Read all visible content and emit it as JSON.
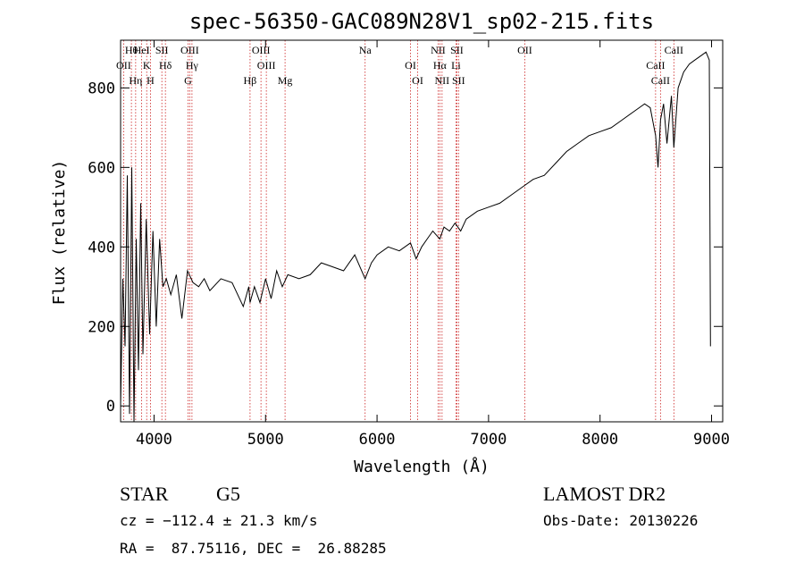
{
  "chart_data": {
    "type": "line",
    "title": "spec-56350-GAC089N28V1_sp02-215.fits",
    "xlabel": "Wavelength (Å)",
    "ylabel": "Flux (relative)",
    "xlim": [
      3700,
      9100
    ],
    "ylim": [
      -40,
      920
    ],
    "xticks": [
      4000,
      5000,
      6000,
      7000,
      8000,
      9000
    ],
    "yticks": [
      0,
      200,
      400,
      600,
      800
    ],
    "grid": false,
    "line_color": "#000000",
    "marker_color": "#cc2222",
    "series": [
      {
        "x": [
          3700,
          3720,
          3740,
          3760,
          3780,
          3800,
          3820,
          3840,
          3860,
          3880,
          3900,
          3930,
          3960,
          3990,
          4020,
          4050,
          4080,
          4110,
          4150,
          4200,
          4250,
          4300,
          4350,
          4400,
          4450,
          4500,
          4600,
          4700,
          4800,
          4850,
          4861,
          4900,
          4950,
          5000,
          5050,
          5100,
          5150,
          5200,
          5300,
          5400,
          5500,
          5600,
          5700,
          5800,
          5893,
          5950,
          6000,
          6100,
          6200,
          6300,
          6350,
          6400,
          6450,
          6500,
          6563,
          6600,
          6650,
          6700,
          6750,
          6800,
          6900,
          7000,
          7100,
          7200,
          7300,
          7400,
          7500,
          7600,
          7700,
          7800,
          7900,
          8000,
          8100,
          8200,
          8300,
          8400,
          8450,
          8498,
          8520,
          8542,
          8570,
          8600,
          8640,
          8662,
          8700,
          8750,
          8800,
          8850,
          8900,
          8950,
          8980,
          8990
        ],
        "y": [
          0,
          320,
          150,
          580,
          -20,
          600,
          -40,
          420,
          90,
          510,
          130,
          470,
          180,
          440,
          200,
          420,
          300,
          320,
          280,
          330,
          220,
          340,
          310,
          300,
          320,
          290,
          320,
          310,
          250,
          300,
          260,
          300,
          260,
          320,
          270,
          340,
          300,
          330,
          320,
          330,
          360,
          350,
          340,
          380,
          320,
          360,
          380,
          400,
          390,
          410,
          370,
          400,
          420,
          440,
          420,
          450,
          440,
          460,
          440,
          470,
          490,
          500,
          510,
          530,
          550,
          570,
          580,
          610,
          640,
          660,
          680,
          690,
          700,
          720,
          740,
          760,
          750,
          680,
          600,
          720,
          760,
          660,
          780,
          650,
          800,
          840,
          860,
          870,
          880,
          890,
          870,
          150
        ]
      }
    ],
    "lines": [
      {
        "name": "Hθ",
        "wl": 3797
      },
      {
        "name": "OII",
        "wl": 3727
      },
      {
        "name": "Hη",
        "wl": 3835
      },
      {
        "name": "HeI",
        "wl": 3889
      },
      {
        "name": "K",
        "wl": 3934
      },
      {
        "name": "H",
        "wl": 3968
      },
      {
        "name": "SII",
        "wl": 4070
      },
      {
        "name": "Hδ",
        "wl": 4102
      },
      {
        "name": "G",
        "wl": 4305
      },
      {
        "name": "OIII",
        "wl": 4320
      },
      {
        "name": "Hγ",
        "wl": 4340
      },
      {
        "name": "Hβ",
        "wl": 4861
      },
      {
        "name": "OIII",
        "wl": 4959
      },
      {
        "name": "OIII",
        "wl": 5007
      },
      {
        "name": "Mg",
        "wl": 5175
      },
      {
        "name": "Na",
        "wl": 5893
      },
      {
        "name": "OI",
        "wl": 6300
      },
      {
        "name": "OI",
        "wl": 6364
      },
      {
        "name": "NII",
        "wl": 6548
      },
      {
        "name": "Hα",
        "wl": 6563
      },
      {
        "name": "NII",
        "wl": 6583
      },
      {
        "name": "SII",
        "wl": 6716
      },
      {
        "name": "Li",
        "wl": 6708
      },
      {
        "name": "SII",
        "wl": 6731
      },
      {
        "name": "OII",
        "wl": 7325
      },
      {
        "name": "CaII",
        "wl": 8498
      },
      {
        "name": "CaII",
        "wl": 8542
      },
      {
        "name": "CaII",
        "wl": 8662
      }
    ]
  },
  "info": {
    "object_type": "STAR",
    "subclass": "G5",
    "survey": "LAMOST DR2",
    "cz": "cz = −112.4 ± 21.3 km/s",
    "obs_date": "Obs-Date: 20130226",
    "coords": "RA =  87.75116, DEC =  26.88285"
  }
}
